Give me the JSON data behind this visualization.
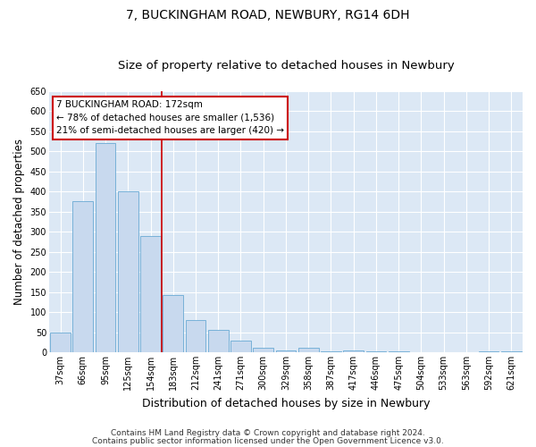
{
  "title": "7, BUCKINGHAM ROAD, NEWBURY, RG14 6DH",
  "subtitle": "Size of property relative to detached houses in Newbury",
  "xlabel": "Distribution of detached houses by size in Newbury",
  "ylabel": "Number of detached properties",
  "footer1": "Contains HM Land Registry data © Crown copyright and database right 2024.",
  "footer2": "Contains public sector information licensed under the Open Government Licence v3.0.",
  "categories": [
    "37sqm",
    "66sqm",
    "95sqm",
    "125sqm",
    "154sqm",
    "183sqm",
    "212sqm",
    "241sqm",
    "271sqm",
    "300sqm",
    "329sqm",
    "358sqm",
    "387sqm",
    "417sqm",
    "446sqm",
    "475sqm",
    "504sqm",
    "533sqm",
    "563sqm",
    "592sqm",
    "621sqm"
  ],
  "values": [
    50,
    375,
    520,
    400,
    290,
    143,
    80,
    55,
    30,
    12,
    5,
    12,
    3,
    5,
    3,
    2,
    1,
    1,
    0,
    3,
    2
  ],
  "bar_color": "#c8d9ee",
  "bar_edge_color": "#6aaad4",
  "vline_x": 4.5,
  "vline_color": "#cc0000",
  "annotation_text": "7 BUCKINGHAM ROAD: 172sqm\n← 78% of detached houses are smaller (1,536)\n21% of semi-detached houses are larger (420) →",
  "box_edge_color": "#cc0000",
  "ylim": [
    0,
    650
  ],
  "yticks": [
    0,
    50,
    100,
    150,
    200,
    250,
    300,
    350,
    400,
    450,
    500,
    550,
    600,
    650
  ],
  "plot_bg_color": "#dce8f5",
  "fig_bg_color": "#ffffff",
  "grid_color": "#ffffff",
  "title_fontsize": 10,
  "subtitle_fontsize": 9.5,
  "ylabel_fontsize": 8.5,
  "xlabel_fontsize": 9,
  "tick_fontsize": 7,
  "annot_fontsize": 7.5,
  "footer_fontsize": 6.5
}
